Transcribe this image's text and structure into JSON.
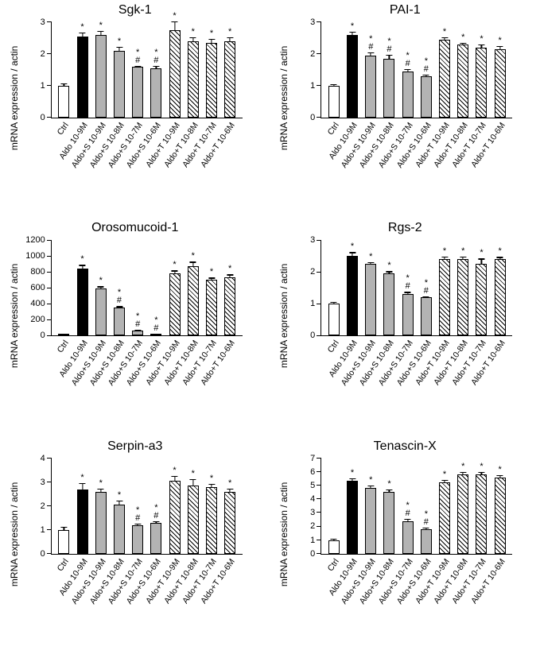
{
  "categories": [
    "Ctrl",
    "Aldo 10-9M",
    "Aldo+S 10-9M",
    "Aldo+S 10-8M",
    "Aldo+S 10-7M",
    "Aldo+S 10-6M",
    "Aldo+T 10-9M",
    "Aldo+T 10-8M",
    "Aldo+T 10-7M",
    "Aldo+T 10-6M"
  ],
  "fills": [
    "solid-white",
    "solid-black",
    "solid-grey",
    "solid-grey",
    "solid-grey",
    "solid-grey",
    "hatch",
    "hatch",
    "hatch",
    "hatch"
  ],
  "charts": [
    {
      "title": "Sgk-1",
      "ylabel": "mRNA expression / actin",
      "ymax": 3,
      "yticks": [
        0,
        1,
        2,
        3
      ],
      "values": [
        1.0,
        2.55,
        2.6,
        2.1,
        1.6,
        1.55,
        2.75,
        2.4,
        2.35,
        2.4
      ],
      "errors": [
        0.1,
        0.15,
        0.15,
        0.15,
        0.05,
        0.1,
        0.3,
        0.15,
        0.15,
        0.15
      ],
      "sig": [
        "",
        "*",
        "*",
        "*",
        "*#",
        "*#",
        "*",
        "*",
        "*",
        "*"
      ]
    },
    {
      "title": "PAI-1",
      "ylabel": "mRNA expression / actin",
      "ymax": 3,
      "yticks": [
        0,
        1,
        2,
        3
      ],
      "values": [
        1.0,
        2.6,
        1.95,
        1.85,
        1.45,
        1.3,
        2.45,
        2.3,
        2.2,
        2.15
      ],
      "errors": [
        0.08,
        0.12,
        0.12,
        0.15,
        0.1,
        0.08,
        0.1,
        0.08,
        0.12,
        0.12
      ],
      "sig": [
        "",
        "*",
        "*#",
        "*#",
        "*#",
        "*#",
        "*",
        "*",
        "*",
        "*"
      ]
    },
    {
      "title": "Orosomucoid-1",
      "ylabel": "mRNA expression / actin",
      "ymax": 1200,
      "yticks": [
        0,
        200,
        400,
        600,
        800,
        1000,
        1200
      ],
      "values": [
        20,
        840,
        590,
        350,
        60,
        15,
        780,
        870,
        700,
        730
      ],
      "errors": [
        10,
        60,
        40,
        30,
        25,
        10,
        50,
        70,
        40,
        50
      ],
      "sig": [
        "",
        "*",
        "*",
        "*#",
        "*#",
        "*#",
        "*",
        "*",
        "*",
        "*"
      ]
    },
    {
      "title": "Rgs-2",
      "ylabel": "mRNA expression / actin",
      "ymax": 3,
      "yticks": [
        0,
        1,
        2,
        3
      ],
      "values": [
        1.0,
        2.5,
        2.25,
        1.95,
        1.3,
        1.2,
        2.4,
        2.4,
        2.25,
        2.4
      ],
      "errors": [
        0.08,
        0.15,
        0.08,
        0.1,
        0.1,
        0.05,
        0.12,
        0.12,
        0.2,
        0.1
      ],
      "sig": [
        "",
        "*",
        "*",
        "*",
        "*#",
        "*#",
        "*",
        "*",
        "*",
        "*"
      ]
    },
    {
      "title": "Serpin-a3",
      "ylabel": "mRNA expression / actin",
      "ymax": 4,
      "yticks": [
        0,
        1,
        2,
        3,
        4
      ],
      "values": [
        1.0,
        2.7,
        2.6,
        2.05,
        1.2,
        1.3,
        3.05,
        2.85,
        2.8,
        2.6
      ],
      "errors": [
        0.15,
        0.3,
        0.15,
        0.2,
        0.1,
        0.1,
        0.25,
        0.3,
        0.15,
        0.15
      ],
      "sig": [
        "",
        "*",
        "*",
        "*",
        "*#",
        "*#",
        "*",
        "*",
        "*",
        "*"
      ]
    },
    {
      "title": "Tenascin-X",
      "ylabel": "mRNA expression / actin",
      "ymax": 7,
      "yticks": [
        0,
        1,
        2,
        3,
        4,
        5,
        6,
        7
      ],
      "values": [
        1.0,
        5.35,
        4.8,
        4.55,
        2.4,
        1.8,
        5.25,
        5.8,
        5.8,
        5.6
      ],
      "errors": [
        0.15,
        0.25,
        0.25,
        0.2,
        0.2,
        0.15,
        0.2,
        0.25,
        0.25,
        0.2
      ],
      "sig": [
        "",
        "*",
        "*",
        "*",
        "*#",
        "*#",
        "*",
        "*",
        "*",
        "*"
      ]
    }
  ],
  "colors": {
    "axis": "#000000",
    "grey": "#b3b3b3",
    "background": "#ffffff"
  },
  "font_sizes": {
    "title": 16,
    "axis_label": 12,
    "tick": 11,
    "category": 10.5
  }
}
